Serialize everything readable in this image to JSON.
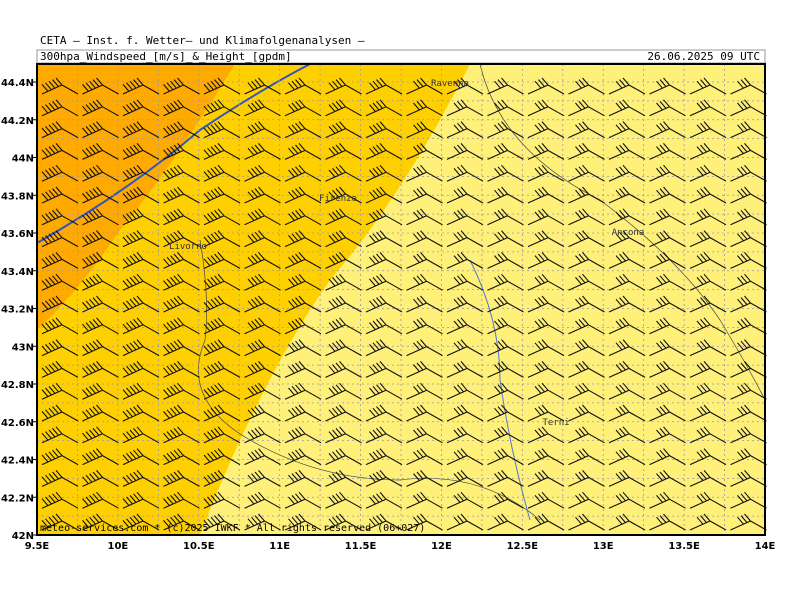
{
  "header": {
    "institute": "CETA – Inst. f. Wetter– und Klimafolgenanalysen –",
    "parameter": "300hpa_Windspeed_[m/s]_&_Height_[gpdm]",
    "valid_time": "26.06.2025 09 UTC"
  },
  "map": {
    "lat_labels": [
      "44.4N",
      "44.2N",
      "44N",
      "43.8N",
      "43.6N",
      "43.4N",
      "43.2N",
      "43N",
      "42.8N",
      "42.6N",
      "42.4N",
      "42.2N",
      "42N"
    ],
    "lon_labels": [
      "9.5E",
      "10E",
      "10.5E",
      "11E",
      "11.5E",
      "12E",
      "12.5E",
      "13E",
      "13.5E",
      "14E"
    ],
    "cities": [
      "Ravenna",
      "Firenze",
      "Livorno",
      "Ancona",
      "Terni"
    ]
  },
  "footer": "meteo-services.com * (c)2025 IWKF * All rights reserved (06+027)"
}
